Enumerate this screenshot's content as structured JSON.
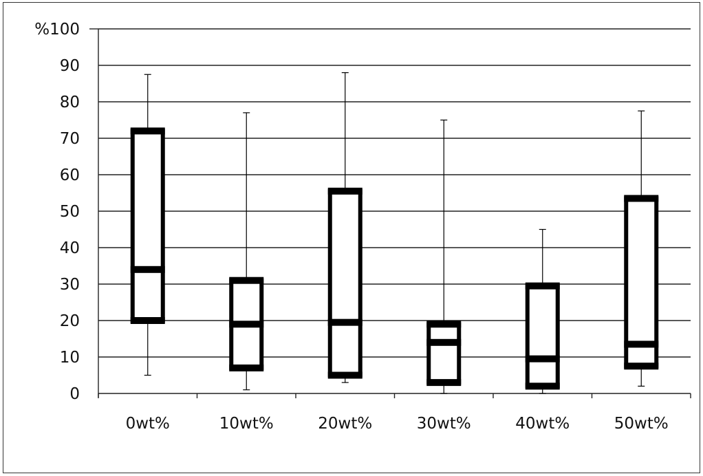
{
  "chart_data": {
    "type": "box",
    "title": "",
    "xlabel": "",
    "ylabel": "",
    "ylim": [
      0,
      100
    ],
    "y_ticks": [
      "0",
      "10",
      "20",
      "30",
      "40",
      "50",
      "60",
      "70",
      "80",
      "90",
      "%100"
    ],
    "categories": [
      "0wt%",
      "10wt%",
      "20wt%",
      "30wt%",
      "40wt%",
      "50wt%"
    ],
    "boxes": [
      {
        "min": 5,
        "q1": 20,
        "median": 34,
        "q3": 72,
        "max": 87.5
      },
      {
        "min": 1,
        "q1": 7,
        "median": 19,
        "q3": 31,
        "max": 77
      },
      {
        "min": 3,
        "q1": 5,
        "median": 19.5,
        "q3": 55.5,
        "max": 88
      },
      {
        "min": 0,
        "q1": 3,
        "median": 14,
        "q3": 19,
        "max": 75
      },
      {
        "min": 0,
        "q1": 2,
        "median": 9.5,
        "q3": 29.5,
        "max": 45
      },
      {
        "min": 2,
        "q1": 7.5,
        "median": 13.5,
        "q3": 53.5,
        "max": 77.5
      }
    ],
    "grid": true,
    "legend": "none"
  },
  "colors": {
    "box": "#000000",
    "grid": "#222222",
    "text": "#111111"
  }
}
